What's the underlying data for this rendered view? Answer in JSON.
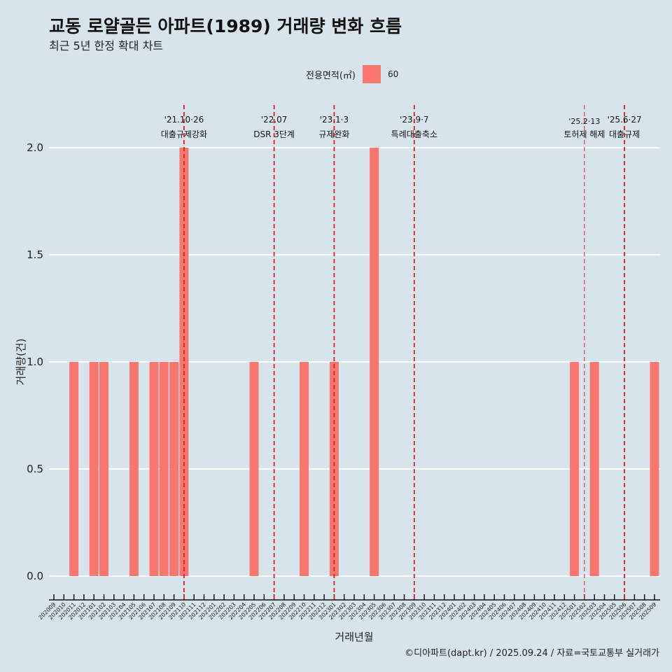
{
  "title": "교동 로얄골든 아파트(1989) 거래량 변화 흐름",
  "subtitle": "최근 5년 한정 확대 차트",
  "legend": {
    "title": "전용면적(㎡)",
    "items": [
      {
        "label": "60",
        "color": "#f8766d"
      }
    ]
  },
  "caption": "©디아파트(dapt.kr) / 2025.09.24 / 자료=국토교통부 실거래가",
  "chart_data": {
    "type": "bar",
    "title": "교동 로얄골든 아파트(1989) 거래량 변화 흐름",
    "xlabel": "거래년월",
    "ylabel": "거래량(건)",
    "ylim": [
      0,
      2
    ],
    "yticks": [
      "0.0",
      "0.5",
      "1.0",
      "1.5",
      "2.0"
    ],
    "grid": true,
    "legend_position": "top",
    "categories": [
      "202009",
      "202010",
      "202011",
      "202012",
      "202101",
      "202102",
      "202103",
      "202104",
      "202105",
      "202106",
      "202107",
      "202108",
      "202109",
      "202110",
      "202111",
      "202112",
      "202201",
      "202202",
      "202203",
      "202204",
      "202205",
      "202206",
      "202207",
      "202208",
      "202209",
      "202210",
      "202211",
      "202212",
      "202301",
      "202302",
      "202303",
      "202304",
      "202305",
      "202306",
      "202307",
      "202308",
      "202309",
      "202310",
      "202311",
      "202312",
      "202401",
      "202402",
      "202403",
      "202404",
      "202405",
      "202406",
      "202407",
      "202408",
      "202409",
      "202410",
      "202411",
      "202412",
      "202501",
      "202502",
      "202503",
      "202504",
      "202505",
      "202506",
      "202507",
      "202508",
      "202509"
    ],
    "series": [
      {
        "name": "60",
        "color": "#f8766d",
        "values": [
          0,
          0,
          1,
          0,
          1,
          1,
          0,
          0,
          1,
          0,
          1,
          1,
          1,
          2,
          0,
          0,
          0,
          0,
          0,
          0,
          1,
          0,
          0,
          0,
          0,
          1,
          0,
          0,
          1,
          0,
          0,
          0,
          2,
          0,
          0,
          0,
          0,
          0,
          0,
          0,
          0,
          0,
          0,
          0,
          0,
          0,
          0,
          0,
          0,
          0,
          0,
          0,
          1,
          0,
          1,
          0,
          0,
          0,
          0,
          0,
          1
        ]
      }
    ],
    "annotations": [
      {
        "at": "202110",
        "date": "'21.10·26",
        "label": "대출규제강화",
        "thin": false
      },
      {
        "at": "202207",
        "date": "'22.07",
        "label": "DSR 3단계",
        "thin": false
      },
      {
        "at": "202301",
        "date": "'23.1·3",
        "label": "규제완화",
        "thin": false
      },
      {
        "at": "202309",
        "date": "'23.9·7",
        "label": "특례대출축소",
        "thin": false
      },
      {
        "at": "202502",
        "date": "'25.2·13",
        "label": "토허제 해제",
        "thin": true
      },
      {
        "at": "202506",
        "date": "'25.6·27",
        "label": "대출규제",
        "thin": false
      }
    ]
  }
}
